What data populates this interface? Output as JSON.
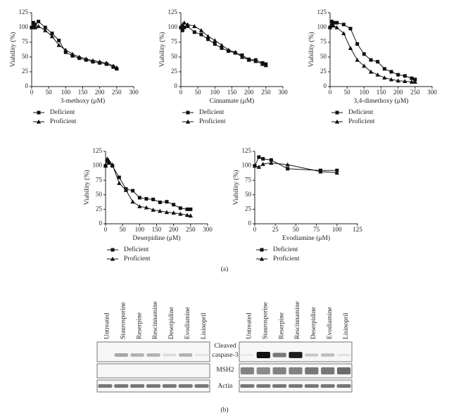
{
  "chart_data": [
    {
      "type": "line",
      "xlabel": "3-methoxy (μM)",
      "ylabel": "Viability (%)",
      "legend": "below",
      "x": [
        0,
        5,
        10,
        20,
        40,
        60,
        80,
        100,
        120,
        140,
        160,
        180,
        200,
        220,
        240,
        250
      ],
      "xlim": [
        0,
        300
      ],
      "xticks": [
        0,
        50,
        100,
        150,
        200,
        250,
        300
      ],
      "ylim": [
        0,
        125
      ],
      "yticks": [
        0,
        25,
        50,
        75,
        100,
        125
      ],
      "series": [
        {
          "name": "Deficient",
          "color": "#111111",
          "marker": "square",
          "values": [
            100,
            108,
            105,
            110,
            100,
            90,
            78,
            58,
            52,
            48,
            45,
            42,
            40,
            38,
            33,
            30
          ]
        },
        {
          "name": "Proficient",
          "color": "#111111",
          "marker": "triangle",
          "values": [
            100,
            103,
            100,
            102,
            95,
            85,
            70,
            62,
            55,
            50,
            47,
            44,
            42,
            40,
            35,
            32
          ]
        }
      ]
    },
    {
      "type": "line",
      "xlabel": "Cinnamate (μM)",
      "ylabel": "Viability (%)",
      "legend": "below",
      "x": [
        0,
        5,
        10,
        20,
        40,
        60,
        80,
        100,
        120,
        140,
        160,
        180,
        200,
        220,
        240,
        250
      ],
      "xlim": [
        0,
        300
      ],
      "xticks": [
        0,
        50,
        100,
        150,
        200,
        250,
        300
      ],
      "ylim": [
        0,
        125
      ],
      "yticks": [
        0,
        25,
        50,
        75,
        100,
        125
      ],
      "series": [
        {
          "name": "Deficient",
          "color": "#111111",
          "marker": "square",
          "values": [
            100,
            95,
            100,
            102,
            92,
            88,
            80,
            72,
            65,
            60,
            57,
            53,
            46,
            45,
            40,
            38
          ]
        },
        {
          "name": "Proficient",
          "color": "#111111",
          "marker": "triangle",
          "values": [
            100,
            105,
            108,
            105,
            102,
            95,
            85,
            78,
            70,
            62,
            58,
            50,
            45,
            43,
            38,
            36
          ]
        }
      ]
    },
    {
      "type": "line",
      "xlabel": "3,4-dimethoxy (μM)",
      "ylabel": "Viability (%)",
      "legend": "below",
      "x": [
        0,
        5,
        10,
        20,
        40,
        60,
        80,
        100,
        120,
        140,
        160,
        180,
        200,
        220,
        240,
        250
      ],
      "xlim": [
        0,
        300
      ],
      "xticks": [
        0,
        50,
        100,
        150,
        200,
        250,
        300
      ],
      "ylim": [
        0,
        125
      ],
      "yticks": [
        0,
        25,
        50,
        75,
        100,
        125
      ],
      "series": [
        {
          "name": "Deficient",
          "color": "#111111",
          "marker": "square",
          "values": [
            100,
            110,
            108,
            108,
            105,
            98,
            72,
            55,
            45,
            42,
            30,
            25,
            20,
            18,
            14,
            12
          ]
        },
        {
          "name": "Proficient",
          "color": "#111111",
          "marker": "triangle",
          "values": [
            100,
            105,
            103,
            100,
            90,
            65,
            45,
            35,
            25,
            20,
            15,
            12,
            10,
            9,
            8,
            8
          ]
        }
      ]
    },
    {
      "type": "line",
      "xlabel": "Deserpidine (μM)",
      "ylabel": "Viability (%)",
      "legend": "below",
      "x": [
        0,
        5,
        10,
        20,
        40,
        60,
        80,
        100,
        120,
        140,
        160,
        180,
        200,
        220,
        240,
        250
      ],
      "xlim": [
        0,
        300
      ],
      "xticks": [
        0,
        50,
        100,
        150,
        200,
        250,
        300
      ],
      "ylim": [
        0,
        125
      ],
      "yticks": [
        0,
        25,
        50,
        75,
        100,
        125
      ],
      "series": [
        {
          "name": "Deficient",
          "color": "#111111",
          "marker": "square",
          "values": [
            100,
            110,
            105,
            100,
            80,
            60,
            57,
            45,
            43,
            42,
            37,
            38,
            33,
            27,
            25,
            25
          ]
        },
        {
          "name": "Proficient",
          "color": "#111111",
          "marker": "triangle",
          "values": [
            100,
            112,
            108,
            102,
            70,
            58,
            38,
            30,
            28,
            24,
            22,
            20,
            19,
            17,
            15,
            14
          ]
        }
      ]
    },
    {
      "type": "line",
      "xlabel": "Evodiamine (μM)",
      "ylabel": "Viability (%)",
      "legend": "below",
      "x": [
        0,
        5,
        10,
        20,
        40,
        80,
        100
      ],
      "xlim": [
        0,
        125
      ],
      "xticks": [
        0,
        25,
        50,
        75,
        100,
        125
      ],
      "ylim": [
        0,
        125
      ],
      "yticks": [
        0,
        25,
        50,
        75,
        100,
        125
      ],
      "series": [
        {
          "name": "Deficient",
          "color": "#111111",
          "marker": "square",
          "values": [
            100,
            115,
            112,
            110,
            95,
            92,
            92
          ]
        },
        {
          "name": "Proficient",
          "color": "#111111",
          "marker": "triangle",
          "values": [
            100,
            98,
            103,
            105,
            102,
            90,
            88
          ]
        }
      ]
    }
  ],
  "panel_labels": [
    "(a)",
    "(b)"
  ],
  "blot": {
    "lanes": [
      "Untreated",
      "Staurosporine",
      "Reserpine",
      "Rescinnamine",
      "Deserpidine",
      "Evodiamine",
      "Lisinopril"
    ],
    "rows": [
      "Cleaved",
      "caspase-3",
      "MSH2",
      "Actin"
    ]
  }
}
